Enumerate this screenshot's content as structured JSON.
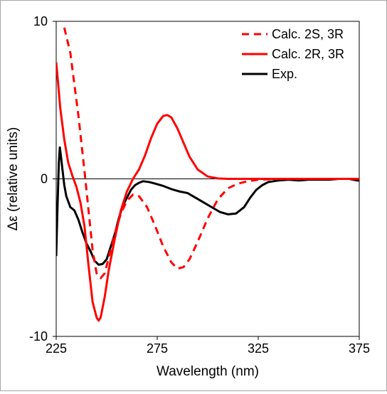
{
  "chart_data": {
    "type": "line",
    "xlabel": "Wavelength (nm)",
    "ylabel": "Δε (relative units)",
    "xlim": [
      225,
      375
    ],
    "ylim": [
      -10,
      10
    ],
    "x_ticks": [
      "225",
      "275",
      "325",
      "375"
    ],
    "y_ticks": [
      "10",
      "0",
      "-10"
    ],
    "grid": false,
    "legend_position": "top-right",
    "series": [
      {
        "name": "Calc. 2S, 3R",
        "color": "#ff0000",
        "style": "dashed",
        "points": [
          [
            229,
            9.6
          ],
          [
            232,
            8.0
          ],
          [
            236,
            4.0
          ],
          [
            239,
            0.5
          ],
          [
            241,
            -2.0
          ],
          [
            243,
            -4.5
          ],
          [
            245,
            -6.0
          ],
          [
            247,
            -6.3
          ],
          [
            249,
            -6.0
          ],
          [
            251,
            -5.0
          ],
          [
            254,
            -3.5
          ],
          [
            257,
            -2.2
          ],
          [
            260,
            -1.4
          ],
          [
            263,
            -1.0
          ],
          [
            266,
            -1.1
          ],
          [
            270,
            -1.8
          ],
          [
            274,
            -3.0
          ],
          [
            278,
            -4.3
          ],
          [
            282,
            -5.3
          ],
          [
            285,
            -5.7
          ],
          [
            288,
            -5.6
          ],
          [
            291,
            -5.1
          ],
          [
            295,
            -4.0
          ],
          [
            300,
            -2.5
          ],
          [
            305,
            -1.3
          ],
          [
            310,
            -0.6
          ],
          [
            315,
            -0.3
          ],
          [
            320,
            -0.15
          ],
          [
            325,
            -0.05
          ],
          [
            335,
            0.0
          ],
          [
            350,
            0.0
          ],
          [
            365,
            0.0
          ],
          [
            375,
            0.0
          ]
        ]
      },
      {
        "name": "Calc. 2R, 3R",
        "color": "#ff0000",
        "style": "solid",
        "points": [
          [
            225,
            7.4
          ],
          [
            226,
            6.0
          ],
          [
            227,
            4.5
          ],
          [
            229,
            2.5
          ],
          [
            231,
            1.0
          ],
          [
            233,
            0.2
          ],
          [
            235,
            -0.5
          ],
          [
            237,
            -1.5
          ],
          [
            239,
            -3.0
          ],
          [
            241,
            -5.5
          ],
          [
            243,
            -7.8
          ],
          [
            245,
            -8.8
          ],
          [
            246,
            -9.0
          ],
          [
            247,
            -8.8
          ],
          [
            249,
            -7.5
          ],
          [
            251,
            -5.8
          ],
          [
            254,
            -3.8
          ],
          [
            257,
            -2.0
          ],
          [
            260,
            -0.8
          ],
          [
            263,
            0.0
          ],
          [
            266,
            0.6
          ],
          [
            269,
            1.5
          ],
          [
            272,
            2.6
          ],
          [
            275,
            3.5
          ],
          [
            278,
            4.0
          ],
          [
            280,
            4.05
          ],
          [
            282,
            3.9
          ],
          [
            285,
            3.2
          ],
          [
            288,
            2.3
          ],
          [
            291,
            1.4
          ],
          [
            295,
            0.6
          ],
          [
            300,
            0.15
          ],
          [
            305,
            0.03
          ],
          [
            310,
            0.0
          ],
          [
            330,
            0.0
          ],
          [
            350,
            0.0
          ],
          [
            375,
            0.0
          ]
        ]
      },
      {
        "name": "Exp.",
        "color": "#000000",
        "style": "solid",
        "points": [
          [
            225,
            -4.9
          ],
          [
            225.6,
            -2.0
          ],
          [
            226.3,
            1.0
          ],
          [
            226.8,
            2.0
          ],
          [
            227.3,
            1.5
          ],
          [
            228,
            0.7
          ],
          [
            229,
            -0.4
          ],
          [
            230,
            -1.1
          ],
          [
            232,
            -1.8
          ],
          [
            234,
            -2.0
          ],
          [
            236,
            -2.6
          ],
          [
            238,
            -3.4
          ],
          [
            240,
            -4.1
          ],
          [
            242,
            -4.6
          ],
          [
            244,
            -5.2
          ],
          [
            246,
            -5.45
          ],
          [
            248,
            -5.4
          ],
          [
            250,
            -5.1
          ],
          [
            252,
            -4.3
          ],
          [
            254,
            -3.5
          ],
          [
            256,
            -2.5
          ],
          [
            258,
            -1.7
          ],
          [
            260,
            -1.2
          ],
          [
            262,
            -0.7
          ],
          [
            264,
            -0.4
          ],
          [
            266,
            -0.25
          ],
          [
            268,
            -0.15
          ],
          [
            271,
            -0.2
          ],
          [
            274,
            -0.3
          ],
          [
            278,
            -0.45
          ],
          [
            282,
            -0.65
          ],
          [
            286,
            -0.8
          ],
          [
            290,
            -0.9
          ],
          [
            294,
            -1.2
          ],
          [
            298,
            -1.5
          ],
          [
            302,
            -1.8
          ],
          [
            306,
            -2.1
          ],
          [
            310,
            -2.25
          ],
          [
            314,
            -2.2
          ],
          [
            318,
            -1.8
          ],
          [
            321,
            -1.2
          ],
          [
            324,
            -0.7
          ],
          [
            327,
            -0.4
          ],
          [
            330,
            -0.2
          ],
          [
            335,
            -0.1
          ],
          [
            340,
            -0.05
          ],
          [
            345,
            -0.1
          ],
          [
            350,
            -0.05
          ],
          [
            355,
            -0.05
          ],
          [
            360,
            -0.05
          ],
          [
            365,
            0.0
          ],
          [
            370,
            0.0
          ],
          [
            374,
            -0.1
          ],
          [
            375,
            -0.1
          ]
        ]
      }
    ]
  }
}
